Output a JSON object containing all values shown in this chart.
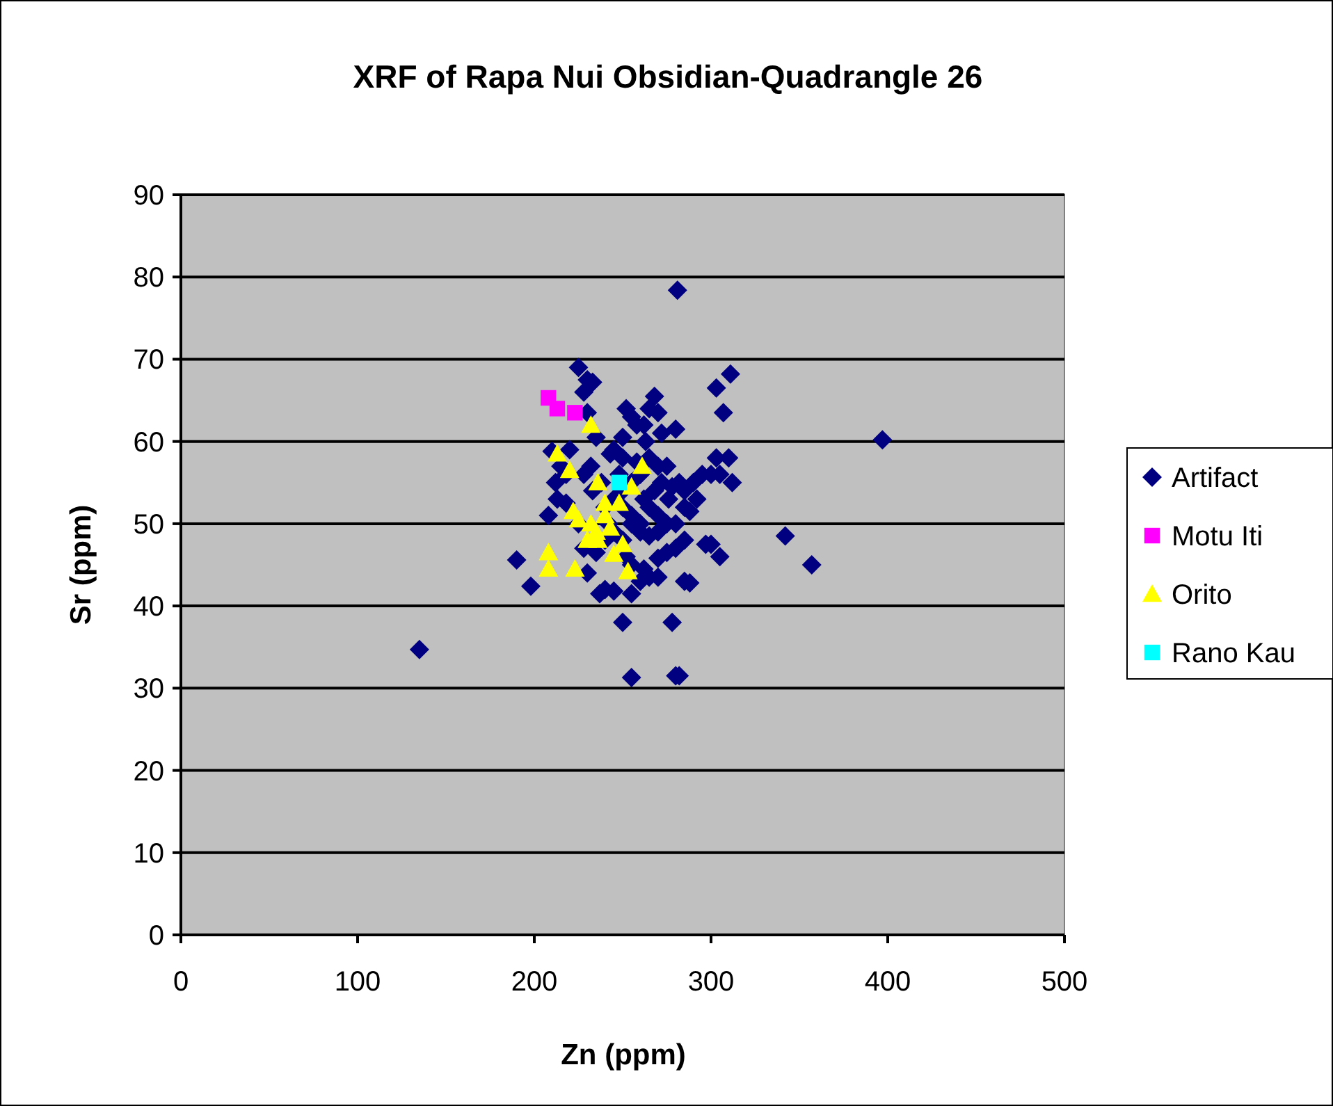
{
  "chart_data": {
    "type": "scatter",
    "title": "XRF of Rapa Nui Obsidian-Quadrangle 26",
    "xlabel": "Zn (ppm)",
    "ylabel": "Sr (ppm)",
    "xlim": [
      0,
      500
    ],
    "xticks": [
      0,
      100,
      200,
      300,
      400,
      500
    ],
    "ylim": [
      0,
      90
    ],
    "yticks": [
      0,
      10,
      20,
      30,
      40,
      50,
      60,
      70,
      80,
      90
    ],
    "grid": "y",
    "legend": "right",
    "series": [
      {
        "name": "Artifact",
        "color": "#000080",
        "marker": "diamond",
        "x": [
          135,
          190,
          198,
          208,
          210,
          212,
          213,
          215,
          218,
          220,
          225,
          228,
          230,
          233,
          230,
          232,
          235,
          228,
          225,
          228,
          230,
          237,
          240,
          245,
          250,
          255,
          255,
          255,
          260,
          265,
          270,
          270,
          278,
          280,
          282,
          285,
          288,
          243,
          245,
          250,
          252,
          255,
          258,
          262,
          265,
          268,
          270,
          272,
          280,
          275,
          270,
          265,
          260,
          255,
          250,
          245,
          240,
          250,
          255,
          260,
          265,
          270,
          275,
          280,
          285,
          290,
          295,
          300,
          303,
          305,
          310,
          312,
          303,
          307,
          311,
          288,
          285,
          280,
          275,
          270,
          265,
          260,
          255,
          250,
          245,
          240,
          297,
          300,
          305,
          342,
          357,
          397,
          281,
          262,
          268,
          272,
          278,
          282,
          258,
          248,
          238,
          242,
          252,
          262,
          235,
          250,
          263,
          276,
          285,
          292,
          233,
          218
        ],
        "values": [
          34.7,
          45.6,
          42.4,
          51,
          58.8,
          55,
          53,
          57,
          52.5,
          59,
          69,
          66,
          67.5,
          67.2,
          63.5,
          57,
          60.5,
          56,
          50,
          47,
          44,
          41.5,
          42,
          41.8,
          38,
          31.3,
          41.5,
          45,
          43,
          43.5,
          45.8,
          43.5,
          38,
          31.5,
          31.5,
          43,
          42.8,
          58.5,
          59,
          60.5,
          64,
          63,
          62,
          62,
          64,
          65.5,
          63.5,
          61,
          61.5,
          57,
          57,
          58,
          56,
          55,
          54,
          53,
          52,
          52,
          51,
          50,
          52,
          51,
          50,
          50,
          52,
          55,
          56,
          56,
          58,
          56,
          58,
          55,
          66.5,
          63.5,
          68.2,
          51.5,
          48,
          47,
          46.5,
          49,
          48.5,
          49,
          50,
          48,
          49,
          48,
          47.5,
          47.5,
          46,
          48.5,
          45,
          60.2,
          78.4,
          53,
          54,
          55,
          54.5,
          55,
          57.5,
          56,
          55,
          50,
          46,
          44.5,
          46.5,
          58,
          60,
          53,
          54,
          53,
          54,
          56
        ]
      },
      {
        "name": "Motu Iti",
        "color": "#ff00ff",
        "marker": "square",
        "x": [
          208,
          213,
          223
        ],
        "values": [
          65.3,
          64,
          63.5
        ]
      },
      {
        "name": "Orito",
        "color": "#ffff00",
        "marker": "triangle",
        "x": [
          232,
          213,
          220,
          236,
          255,
          261,
          222,
          225,
          232,
          235,
          230,
          240,
          248,
          243,
          208,
          208,
          223,
          245,
          253,
          250,
          236,
          240
        ],
        "values": [
          62,
          58.5,
          56.5,
          55,
          54.5,
          57,
          51.5,
          50.5,
          50,
          49,
          48,
          51,
          52.5,
          49.5,
          46.5,
          44.5,
          44.5,
          46.3,
          44.2,
          47.5,
          48,
          52.5
        ]
      },
      {
        "name": "Rano Kau",
        "color": "#00ffff",
        "marker": "square",
        "x": [
          248
        ],
        "values": [
          55
        ]
      }
    ]
  }
}
